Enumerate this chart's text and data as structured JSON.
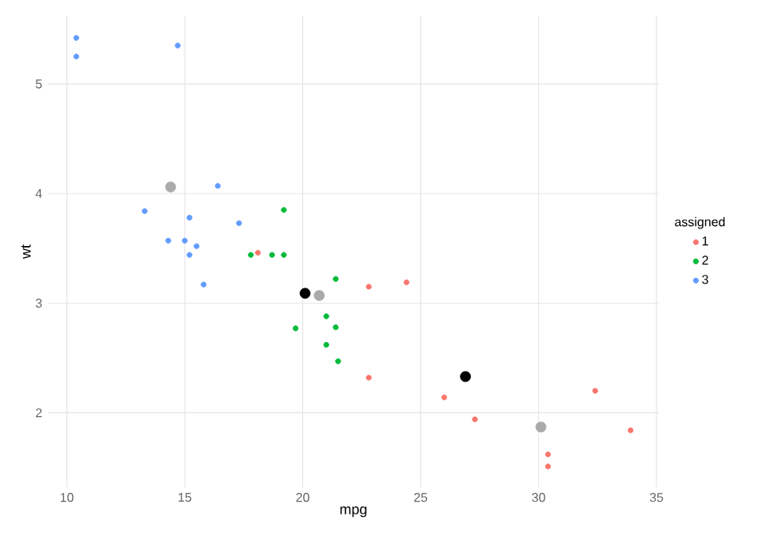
{
  "chart_data": {
    "type": "scatter",
    "xlabel": "mpg",
    "ylabel": "wt",
    "legend_title": "assigned",
    "legend": "right",
    "grid": true,
    "xlim": [
      9.2,
      35.1
    ],
    "ylim": [
      1.32,
      5.62
    ],
    "xticks": [
      10,
      15,
      20,
      25,
      30,
      35
    ],
    "yticks": [
      2,
      3,
      4,
      5
    ],
    "series": [
      {
        "name": "1",
        "color": "#f8766d",
        "x": [
          18.1,
          22.8,
          24.4,
          22.8,
          26.0,
          27.3,
          32.4,
          30.4,
          30.4,
          33.9
        ],
        "values": [
          3.46,
          3.15,
          3.19,
          2.32,
          2.14,
          1.94,
          2.2,
          1.62,
          1.51,
          1.84
        ]
      },
      {
        "name": "2",
        "color": "#00ba38",
        "x": [
          17.8,
          18.7,
          19.2,
          19.2,
          21.4,
          21.0,
          21.4,
          19.7,
          21.0,
          21.5
        ],
        "values": [
          3.44,
          3.44,
          3.44,
          3.85,
          3.22,
          2.88,
          2.78,
          2.77,
          2.62,
          2.47
        ]
      },
      {
        "name": "3",
        "color": "#619cff",
        "x": [
          14.3,
          16.4,
          17.3,
          15.2,
          10.4,
          10.4,
          14.7,
          15.5,
          15.2,
          13.3,
          15.8,
          15.0
        ],
        "values": [
          3.57,
          4.07,
          3.73,
          3.78,
          5.25,
          5.42,
          5.35,
          3.52,
          3.44,
          3.84,
          3.17,
          3.57
        ]
      },
      {
        "color": "#000000",
        "x": [
          20.1,
          26.9
        ],
        "values": [
          3.09,
          2.33
        ]
      },
      {
        "color": "#aaaaaa",
        "x": [
          14.4,
          20.7,
          30.1
        ],
        "values": [
          4.06,
          3.07,
          1.87
        ]
      }
    ]
  }
}
